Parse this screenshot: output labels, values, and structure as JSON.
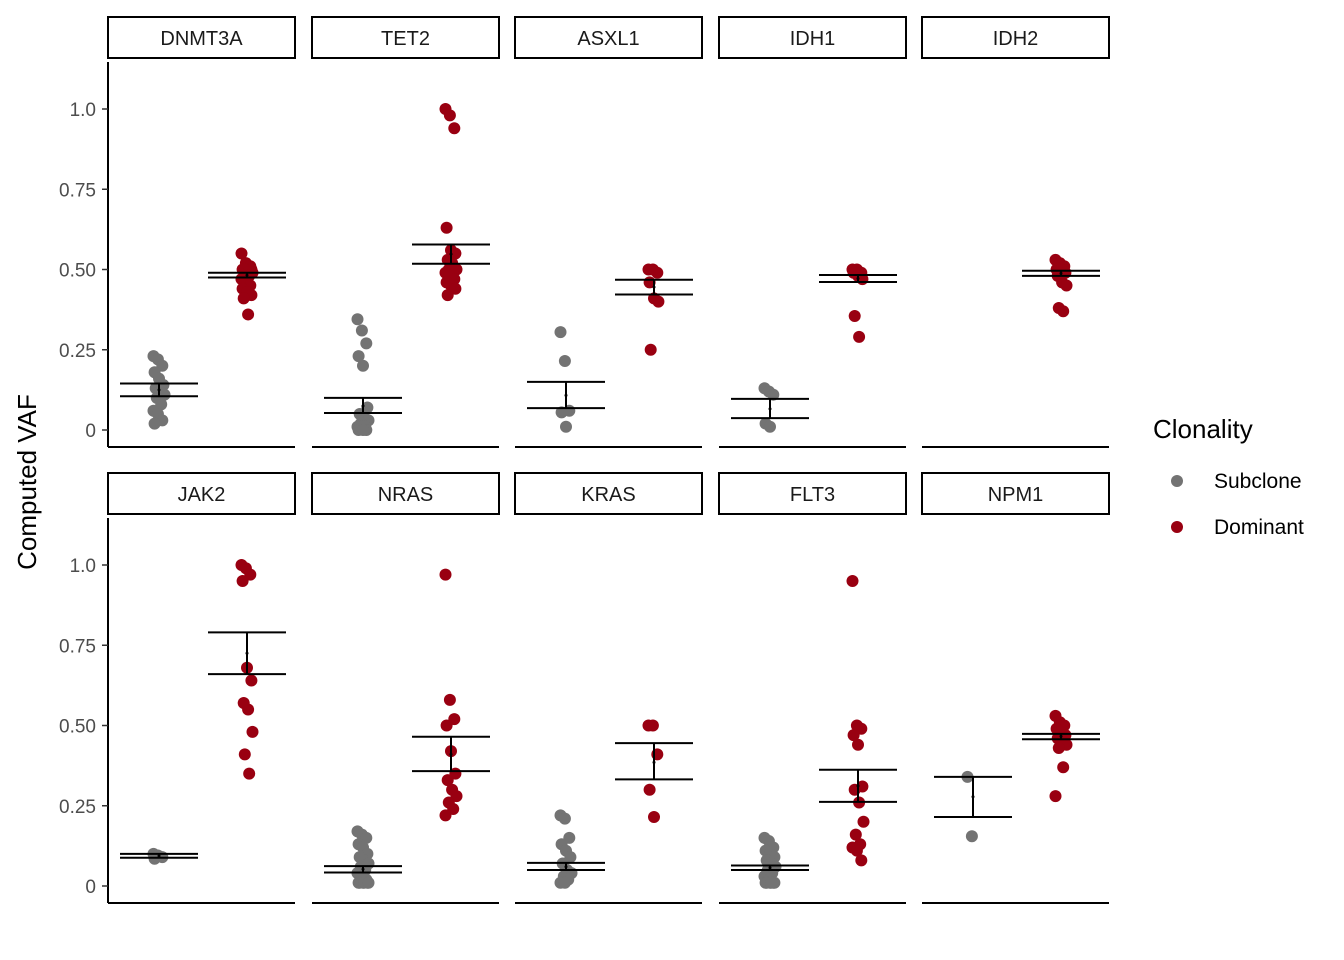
{
  "chart_data": {
    "type": "scatter",
    "ylabel": "Computed VAF",
    "xlabel": "",
    "y_ticks": [
      0,
      0.25,
      0.5,
      0.75,
      1.0
    ],
    "y_tick_labels": [
      "0",
      "0.25",
      "0.50",
      "0.75",
      "1.0"
    ],
    "ylim": [
      -0.03,
      1.15
    ],
    "grid": false,
    "legend": {
      "title": "Clonality",
      "position": "right",
      "entries": [
        {
          "name": "Subclone",
          "color": "#737373"
        },
        {
          "name": "Dominant",
          "color": "#990011"
        }
      ]
    },
    "panels": [
      {
        "gene": "DNMT3A",
        "subclone": {
          "points": [
            0.23,
            0.22,
            0.2,
            0.18,
            0.16,
            0.14,
            0.13,
            0.12,
            0.11,
            0.1,
            0.08,
            0.06,
            0.05,
            0.03,
            0.02
          ],
          "mean": 0.125,
          "se_low": 0.105,
          "se_high": 0.145
        },
        "dominant": {
          "points": [
            0.55,
            0.52,
            0.51,
            0.5,
            0.5,
            0.5,
            0.5,
            0.49,
            0.49,
            0.48,
            0.48,
            0.47,
            0.46,
            0.45,
            0.44,
            0.43,
            0.42,
            0.41,
            0.36
          ],
          "mean": 0.482,
          "se_low": 0.475,
          "se_high": 0.49
        }
      },
      {
        "gene": "TET2",
        "subclone": {
          "points": [
            0.345,
            0.31,
            0.27,
            0.23,
            0.2,
            0.07,
            0.05,
            0.04,
            0.03,
            0.02,
            0.01,
            0.01,
            0.01,
            0.0,
            0.0,
            0.0
          ],
          "mean": 0.075,
          "se_low": 0.053,
          "se_high": 0.1
        },
        "dominant": {
          "points": [
            1.0,
            0.98,
            0.94,
            0.63,
            0.56,
            0.55,
            0.53,
            0.52,
            0.5,
            0.5,
            0.5,
            0.49,
            0.48,
            0.47,
            0.46,
            0.45,
            0.44,
            0.42
          ],
          "mean": 0.548,
          "se_low": 0.518,
          "se_high": 0.578
        }
      },
      {
        "gene": "ASXL1",
        "subclone": {
          "points": [
            0.305,
            0.215,
            0.06,
            0.055,
            0.01
          ],
          "mean": 0.108,
          "se_low": 0.068,
          "se_high": 0.15
        },
        "dominant": {
          "points": [
            0.5,
            0.5,
            0.49,
            0.46,
            0.41,
            0.4,
            0.25
          ],
          "mean": 0.445,
          "se_low": 0.422,
          "se_high": 0.468
        }
      },
      {
        "gene": "IDH1",
        "subclone": {
          "points": [
            0.13,
            0.12,
            0.11,
            0.02,
            0.01
          ],
          "mean": 0.066,
          "se_low": 0.037,
          "se_high": 0.097
        },
        "dominant": {
          "points": [
            0.5,
            0.5,
            0.49,
            0.49,
            0.48,
            0.47,
            0.355,
            0.29
          ],
          "mean": 0.472,
          "se_low": 0.461,
          "se_high": 0.483
        }
      },
      {
        "gene": "IDH2",
        "subclone": null,
        "dominant": {
          "points": [
            0.53,
            0.52,
            0.51,
            0.5,
            0.5,
            0.49,
            0.48,
            0.46,
            0.45,
            0.38,
            0.37
          ],
          "mean": 0.488,
          "se_low": 0.48,
          "se_high": 0.496
        }
      },
      {
        "gene": "JAK2",
        "subclone": {
          "points": [
            0.1,
            0.095,
            0.09,
            0.085
          ],
          "mean": 0.094,
          "se_low": 0.088,
          "se_high": 0.1
        },
        "dominant": {
          "points": [
            1.0,
            0.99,
            0.97,
            0.95,
            0.68,
            0.64,
            0.57,
            0.55,
            0.48,
            0.41,
            0.35
          ],
          "mean": 0.725,
          "se_low": 0.66,
          "se_high": 0.79
        }
      },
      {
        "gene": "NRAS",
        "subclone": {
          "points": [
            0.17,
            0.16,
            0.15,
            0.13,
            0.12,
            0.1,
            0.09,
            0.08,
            0.07,
            0.06,
            0.05,
            0.04,
            0.03,
            0.02,
            0.01,
            0.01,
            0.01,
            0.01,
            0.01,
            0.01
          ],
          "mean": 0.052,
          "se_low": 0.042,
          "se_high": 0.062
        },
        "dominant": {
          "points": [
            0.97,
            0.58,
            0.52,
            0.5,
            0.42,
            0.35,
            0.33,
            0.3,
            0.28,
            0.26,
            0.24,
            0.22
          ],
          "mean": 0.41,
          "se_low": 0.358,
          "se_high": 0.465
        }
      },
      {
        "gene": "KRAS",
        "subclone": {
          "points": [
            0.22,
            0.21,
            0.15,
            0.13,
            0.11,
            0.09,
            0.07,
            0.05,
            0.04,
            0.03,
            0.02,
            0.01,
            0.01
          ],
          "mean": 0.06,
          "se_low": 0.05,
          "se_high": 0.072
        },
        "dominant": {
          "points": [
            0.5,
            0.5,
            0.41,
            0.3,
            0.215
          ],
          "mean": 0.385,
          "se_low": 0.332,
          "se_high": 0.445
        }
      },
      {
        "gene": "FLT3",
        "subclone": {
          "points": [
            0.15,
            0.14,
            0.12,
            0.11,
            0.1,
            0.09,
            0.08,
            0.07,
            0.06,
            0.05,
            0.04,
            0.03,
            0.02,
            0.01,
            0.01,
            0.01,
            0.01,
            0.01,
            0.01
          ],
          "mean": 0.057,
          "se_low": 0.05,
          "se_high": 0.064
        },
        "dominant": {
          "points": [
            0.95,
            0.5,
            0.49,
            0.47,
            0.44,
            0.31,
            0.3,
            0.26,
            0.2,
            0.16,
            0.13,
            0.12,
            0.11,
            0.08
          ],
          "mean": 0.312,
          "se_low": 0.262,
          "se_high": 0.362
        }
      },
      {
        "gene": "NPM1",
        "subclone": {
          "points": [
            0.34,
            0.155
          ],
          "mean": 0.278,
          "se_low": 0.215,
          "se_high": 0.34
        },
        "dominant": {
          "points": [
            0.53,
            0.51,
            0.5,
            0.49,
            0.48,
            0.47,
            0.46,
            0.45,
            0.44,
            0.43,
            0.37,
            0.28
          ],
          "mean": 0.466,
          "se_low": 0.457,
          "se_high": 0.474
        }
      }
    ]
  }
}
